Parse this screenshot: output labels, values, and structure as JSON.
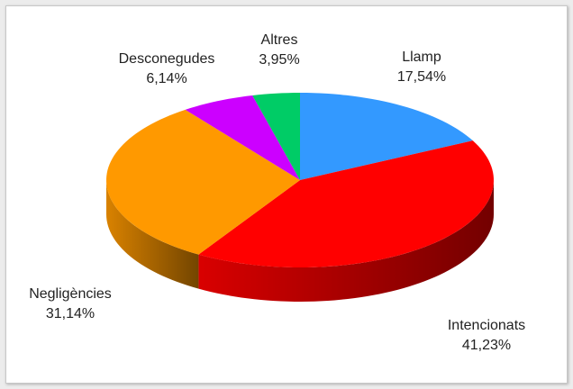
{
  "chart_data": {
    "type": "pie",
    "categories": [
      "Llamp",
      "Intencionats",
      "Negligències",
      "Desconegudes",
      "Altres"
    ],
    "values": [
      17.54,
      41.23,
      31.14,
      6.14,
      3.95
    ],
    "value_labels": [
      "17,54%",
      "41,23%",
      "31,14%",
      "6,14%",
      "3,95%"
    ],
    "colors": [
      "#3399ff",
      "#ff0000",
      "#ff9900",
      "#cc00ff",
      "#00cc66"
    ]
  }
}
